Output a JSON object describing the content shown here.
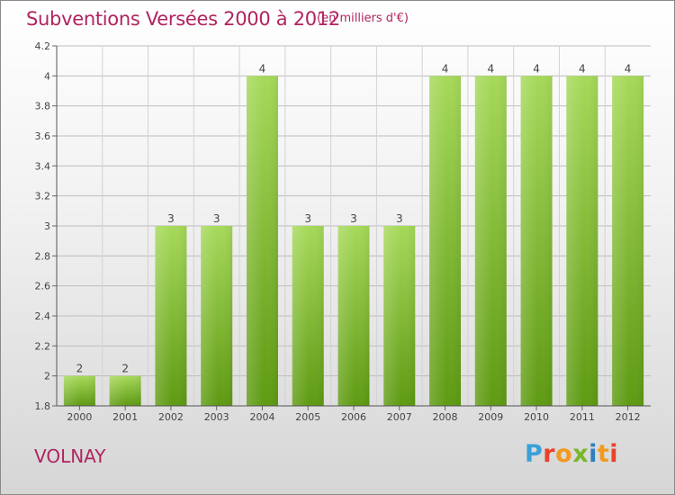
{
  "header": {
    "title": "Subventions Versées 2000 à 2012",
    "unit_note": "(en milliers d'€)"
  },
  "footer": {
    "commune": "VOLNAY",
    "logo": "Proxiti"
  },
  "colors": {
    "title": "#b0245f",
    "bar_light": "#a6d95a",
    "bar_dark": "#5e9a12",
    "grid": "#bdbdbd"
  },
  "chart_data": {
    "type": "bar",
    "title": "Subventions Versées 2000 à 2012",
    "subtitle": "(en milliers d'€)",
    "categories": [
      "2000",
      "2001",
      "2002",
      "2003",
      "2004",
      "2005",
      "2006",
      "2007",
      "2008",
      "2009",
      "2010",
      "2011",
      "2012"
    ],
    "values": [
      2,
      2,
      3,
      3,
      4,
      3,
      3,
      3,
      4,
      4,
      4,
      4,
      4
    ],
    "data_labels": [
      "2",
      "2",
      "3",
      "3",
      "4",
      "3",
      "3",
      "3",
      "4",
      "4",
      "4",
      "4",
      "4"
    ],
    "y_ticks": [
      1.8,
      2,
      2.2,
      2.4,
      2.6,
      2.8,
      3,
      3.2,
      3.4,
      3.6,
      3.8,
      4,
      4.2
    ],
    "y_tick_labels": [
      "1.8",
      "2",
      "2.2",
      "2.4",
      "2.6",
      "2.8",
      "3",
      "3.2",
      "3.4",
      "3.6",
      "3.8",
      "4",
      "4.2"
    ],
    "ylim": [
      1.8,
      4.2
    ],
    "xlabel": "",
    "ylabel": "",
    "grid": true,
    "legend": "none"
  }
}
